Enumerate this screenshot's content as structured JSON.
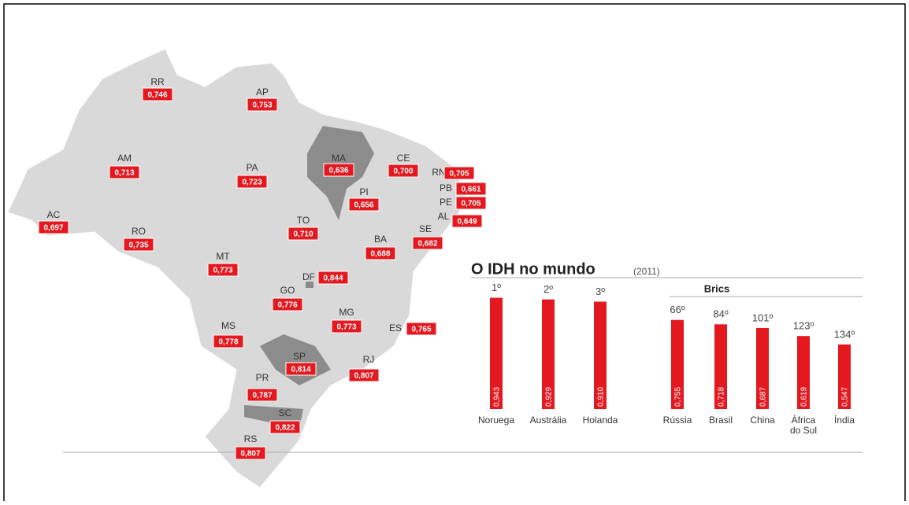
{
  "map": {
    "states": [
      {
        "code": "RR",
        "idh": "0,746"
      },
      {
        "code": "AP",
        "idh": "0,753"
      },
      {
        "code": "AM",
        "idh": "0,713"
      },
      {
        "code": "PA",
        "idh": "0,723"
      },
      {
        "code": "MA",
        "idh": "0,636"
      },
      {
        "code": "CE",
        "idh": "0,700"
      },
      {
        "code": "RN",
        "idh": "0,705"
      },
      {
        "code": "PB",
        "idh": "0,661"
      },
      {
        "code": "PE",
        "idh": "0,705"
      },
      {
        "code": "AL",
        "idh": "0,649"
      },
      {
        "code": "PI",
        "idh": "0,656"
      },
      {
        "code": "AC",
        "idh": "0,697"
      },
      {
        "code": "RO",
        "idh": "0,735"
      },
      {
        "code": "TO",
        "idh": "0,710"
      },
      {
        "code": "BA",
        "idh": "0,688"
      },
      {
        "code": "SE",
        "idh": "0,682"
      },
      {
        "code": "MT",
        "idh": "0,773"
      },
      {
        "code": "DF",
        "idh": "0,844"
      },
      {
        "code": "GO",
        "idh": "0,776"
      },
      {
        "code": "MG",
        "idh": "0,773"
      },
      {
        "code": "ES",
        "idh": "0,765"
      },
      {
        "code": "MS",
        "idh": "0,778"
      },
      {
        "code": "SP",
        "idh": "0,814"
      },
      {
        "code": "RJ",
        "idh": "0,807"
      },
      {
        "code": "PR",
        "idh": "0,787"
      },
      {
        "code": "SC",
        "idh": "0,822"
      },
      {
        "code": "RS",
        "idh": "0,807"
      }
    ]
  },
  "chart_data": {
    "type": "bar",
    "title": "O IDH no mundo",
    "subtitle": "(2011)",
    "group_label": "Brics",
    "color": "#e3191f",
    "categories": [
      "Noruega",
      "Austrália",
      "Holanda",
      "Rússia",
      "Brasil",
      "China",
      "África do Sul",
      "Índia"
    ],
    "values": [
      0.943,
      0.929,
      0.91,
      0.755,
      0.718,
      0.687,
      0.619,
      0.547
    ],
    "value_labels": [
      "0,943",
      "0,929",
      "0,910",
      "0,755",
      "0,718",
      "0,687",
      "0,619",
      "0,547"
    ],
    "ranks": [
      "1º",
      "2º",
      "3º",
      "66º",
      "84º",
      "101º",
      "123º",
      "134º"
    ]
  }
}
